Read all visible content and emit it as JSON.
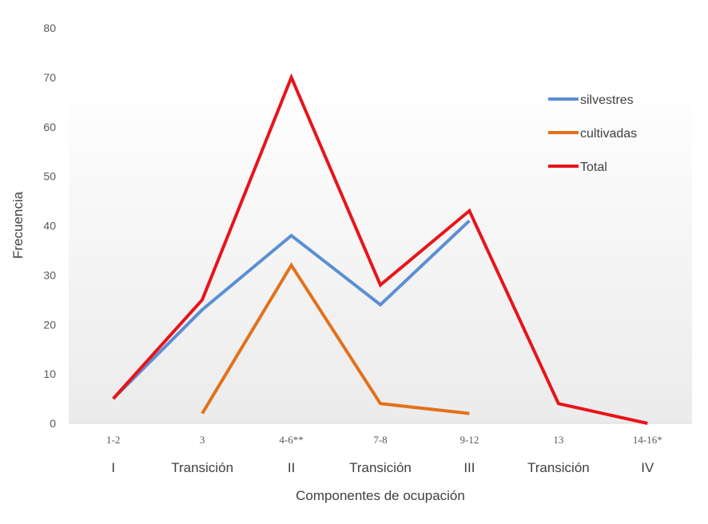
{
  "chart_data": {
    "type": "line",
    "title": "",
    "xlabel": "Componentes de ocupación",
    "ylabel": "Frecuencia",
    "ylim": [
      0,
      80
    ],
    "yticks": [
      0,
      10,
      20,
      30,
      40,
      50,
      60,
      70,
      80
    ],
    "grid": false,
    "legend_position": "top-right",
    "categories": [
      "1-2",
      "3",
      "4-6**",
      "7-8",
      "9-12",
      "13",
      "14-16*"
    ],
    "category_groups": [
      "I",
      "Transición",
      "II",
      "Transición",
      "III",
      "Transición",
      "IV"
    ],
    "series": [
      {
        "name": "silvestres",
        "color": "#5b8fd4",
        "values": [
          5,
          23,
          38,
          24,
          41,
          null,
          null
        ]
      },
      {
        "name": "cultivadas",
        "color": "#e2711a",
        "values": [
          null,
          2,
          32,
          4,
          2,
          null,
          null
        ]
      },
      {
        "name": "Total",
        "color": "#e8141a",
        "values": [
          5,
          25,
          70,
          28,
          43,
          4,
          0
        ]
      }
    ]
  }
}
